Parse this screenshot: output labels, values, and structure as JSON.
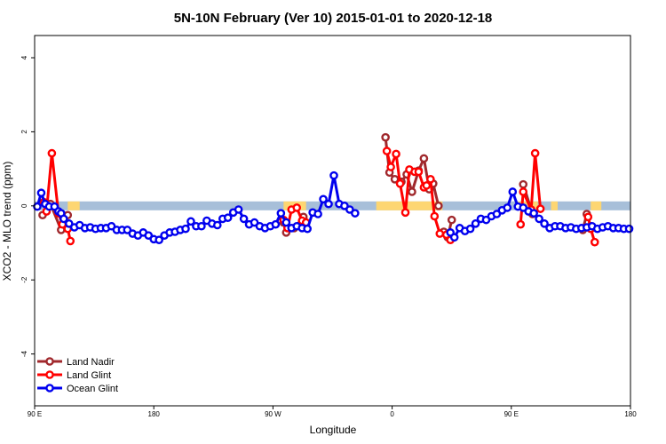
{
  "chart_data": {
    "type": "line",
    "title": "5N-10N February (Ver 10)   2015-01-01 to 2020-12-18",
    "xlabel": "Longitude",
    "ylabel": "XCO2 - MLO trend (ppm)",
    "x_ticks": [
      {
        "value": 90,
        "label": "90 E"
      },
      {
        "value": 180,
        "label": "180"
      },
      {
        "value": 270,
        "label": "90 W"
      },
      {
        "value": 360,
        "label": "0"
      },
      {
        "value": 450,
        "label": "90 E"
      },
      {
        "value": 540,
        "label": "180"
      }
    ],
    "y_ticks": [
      {
        "value": -4,
        "label": "-4"
      },
      {
        "value": -2,
        "label": "-2"
      },
      {
        "value": 0,
        "label": "0"
      },
      {
        "value": 2,
        "label": "2"
      },
      {
        "value": 4,
        "label": "4"
      }
    ],
    "xlim": [
      90,
      540
    ],
    "ylim": [
      -5.4,
      4.6
    ],
    "legend_position": "bottom-left",
    "band": {
      "ymin": -0.12,
      "ymax": 0.12,
      "ocean_color": "#a7bfd9",
      "land_color": "#fdd672"
    },
    "land_segments": [
      [
        115,
        124
      ],
      [
        278,
        295
      ],
      [
        348,
        398
      ],
      [
        455,
        470
      ],
      [
        480,
        485
      ],
      [
        510,
        518
      ]
    ],
    "series": [
      {
        "name": "Land Nadir",
        "color": "#a0282c",
        "x": [
          96,
          102,
          110,
          115
        ],
        "y": [
          -0.25,
          0.05,
          -0.65,
          -0.25
        ]
      },
      {
        "name": "Land Nadir",
        "color": "#a0282c",
        "x": [
          278,
          280,
          286,
          293
        ],
        "y": [
          -0.45,
          -0.72,
          -0.6,
          -0.3
        ]
      },
      {
        "name": "Land Nadir",
        "color": "#a0282c",
        "x": [
          355,
          358,
          362,
          367,
          371,
          375,
          380,
          384,
          388,
          391,
          395
        ],
        "y": [
          1.85,
          0.9,
          0.72,
          0.65,
          0.85,
          0.38,
          0.95,
          1.28,
          0.45,
          0.6,
          0.0
        ]
      },
      {
        "name": "Land Nadir",
        "color": "#a0282c",
        "x": [
          399,
          402,
          405
        ],
        "y": [
          -0.7,
          -0.85,
          -0.38
        ]
      },
      {
        "name": "Land Nadir",
        "color": "#a0282c",
        "x": [
          459,
          466
        ],
        "y": [
          0.58,
          -0.22
        ]
      },
      {
        "name": "Land Nadir",
        "color": "#a0282c",
        "x": [
          504,
          507,
          510
        ],
        "y": [
          -0.65,
          -0.22,
          -0.55
        ]
      },
      {
        "name": "Land Glint",
        "color": "#ff0000",
        "x": [
          97,
          99,
          103,
          108,
          111,
          115,
          117
        ],
        "y": [
          0.1,
          -0.15,
          1.42,
          -0.2,
          -0.5,
          -0.62,
          -0.95
        ]
      },
      {
        "name": "Land Glint",
        "color": "#ff0000",
        "x": [
          278,
          281,
          284,
          288,
          292,
          295
        ],
        "y": [
          -0.38,
          -0.6,
          -0.1,
          -0.05,
          -0.4,
          -0.45
        ]
      },
      {
        "name": "Land Glint",
        "color": "#ff0000",
        "x": [
          356,
          359,
          363,
          366,
          370,
          373,
          377,
          380,
          384,
          386,
          389,
          392,
          396
        ],
        "y": [
          1.48,
          1.05,
          1.4,
          0.6,
          -0.18,
          0.98,
          0.92,
          0.92,
          0.5,
          0.55,
          0.72,
          -0.28,
          -0.75
        ]
      },
      {
        "name": "Land Glint",
        "color": "#ff0000",
        "x": [
          401,
          404
        ],
        "y": [
          -0.78,
          -0.92
        ]
      },
      {
        "name": "Land Glint",
        "color": "#ff0000",
        "x": [
          457,
          459,
          465,
          468,
          472
        ],
        "y": [
          -0.5,
          0.38,
          -0.1,
          1.42,
          -0.08
        ]
      },
      {
        "name": "Land Glint",
        "color": "#ff0000",
        "x": [
          508,
          510,
          513
        ],
        "y": [
          -0.3,
          -0.62,
          -0.98
        ]
      },
      {
        "name": "Ocean Glint",
        "color": "#0000ee",
        "x": [
          92,
          95,
          98,
          101,
          105,
          108,
          110,
          112,
          116,
          120,
          124,
          128,
          132,
          136,
          140,
          144,
          148,
          152,
          156,
          160,
          164,
          168,
          172,
          176,
          180,
          184,
          188,
          192,
          196,
          200,
          204,
          208,
          212,
          216,
          220,
          224,
          228,
          232,
          236,
          240,
          244,
          248,
          252,
          256,
          260,
          264,
          268,
          272,
          276,
          280,
          284,
          288,
          292,
          296,
          300,
          304,
          308,
          312,
          316,
          320,
          324,
          328,
          332
        ],
        "y": [
          -0.02,
          0.35,
          0.05,
          -0.02,
          -0.02,
          -0.15,
          -0.2,
          -0.35,
          -0.48,
          -0.58,
          -0.52,
          -0.6,
          -0.58,
          -0.62,
          -0.6,
          -0.6,
          -0.55,
          -0.65,
          -0.65,
          -0.65,
          -0.75,
          -0.8,
          -0.72,
          -0.8,
          -0.9,
          -0.92,
          -0.8,
          -0.72,
          -0.7,
          -0.65,
          -0.62,
          -0.42,
          -0.55,
          -0.55,
          -0.4,
          -0.48,
          -0.52,
          -0.35,
          -0.32,
          -0.18,
          -0.1,
          -0.35,
          -0.5,
          -0.45,
          -0.55,
          -0.6,
          -0.55,
          -0.5,
          -0.2,
          -0.45,
          -0.6,
          -0.55,
          -0.6,
          -0.62,
          -0.18,
          -0.22,
          0.18,
          0.05,
          0.82,
          0.05,
          0.0,
          -0.1,
          -0.2
        ]
      },
      {
        "name": "Ocean Glint",
        "color": "#0000ee",
        "x": [
          404,
          407,
          411,
          415,
          419,
          423,
          427,
          431,
          435,
          439,
          443,
          447,
          451,
          455,
          459,
          463,
          467,
          471,
          475,
          479,
          483,
          487,
          491,
          495,
          499,
          503,
          507,
          511,
          515,
          519,
          523,
          527,
          531,
          535,
          539
        ],
        "y": [
          -0.72,
          -0.85,
          -0.6,
          -0.68,
          -0.62,
          -0.48,
          -0.35,
          -0.38,
          -0.28,
          -0.22,
          -0.12,
          -0.05,
          0.38,
          -0.02,
          -0.05,
          -0.15,
          -0.2,
          -0.35,
          -0.48,
          -0.6,
          -0.55,
          -0.55,
          -0.6,
          -0.58,
          -0.62,
          -0.6,
          -0.58,
          -0.55,
          -0.62,
          -0.58,
          -0.55,
          -0.6,
          -0.6,
          -0.62,
          -0.62
        ]
      }
    ],
    "legend": [
      {
        "name": "Land Nadir",
        "color": "#a0282c"
      },
      {
        "name": "Land Glint",
        "color": "#ff0000"
      },
      {
        "name": "Ocean Glint",
        "color": "#0000ee"
      }
    ]
  }
}
